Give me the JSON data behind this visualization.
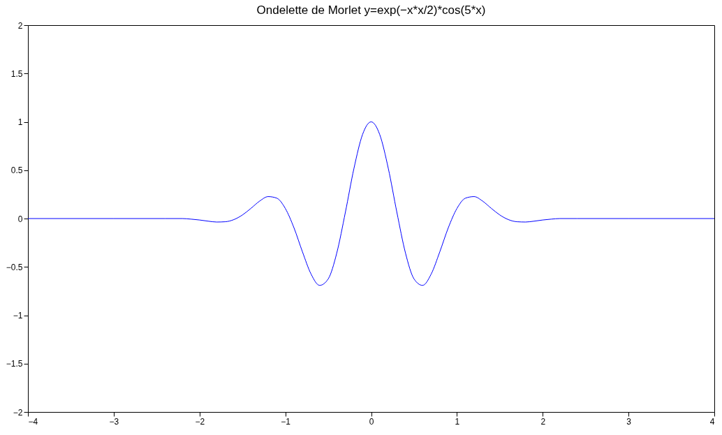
{
  "chart_data": {
    "type": "line",
    "title": "Ondelette de Morlet y=exp(−x*x/2)*cos(5*x)",
    "x": [
      -4,
      -3,
      -2.4,
      -2.2,
      -2.1,
      -2,
      -1.9,
      -1.8,
      -1.7,
      -1.6,
      -1.5,
      -1.4,
      -1.3,
      -1.2,
      -1.1,
      -1,
      -0.9,
      -0.8,
      -0.7,
      -0.6,
      -0.5,
      -0.4,
      -0.3,
      -0.2,
      -0.1,
      0,
      0.1,
      0.2,
      0.3,
      0.4,
      0.5,
      0.6,
      0.7,
      0.8,
      0.9,
      1,
      1.1,
      1.2,
      1.3,
      1.4,
      1.5,
      1.6,
      1.7,
      1.8,
      1.9,
      2,
      2.1,
      2.2,
      2.4,
      3,
      4
    ],
    "series": [
      {
        "color": "#0000ff",
        "values": [
          0,
          0,
          0,
          0,
          -0.006,
          -0.015,
          -0.027,
          -0.036,
          -0.033,
          -0.011,
          0.037,
          0.106,
          0.18,
          0.227,
          0.211,
          0.104,
          -0.094,
          -0.345,
          -0.574,
          -0.691,
          -0.624,
          -0.355,
          0.065,
          0.519,
          0.869,
          1,
          0.869,
          0.519,
          0.065,
          -0.355,
          -0.624,
          -0.691,
          -0.574,
          -0.345,
          -0.094,
          0.104,
          0.211,
          0.227,
          0.18,
          0.106,
          0.037,
          -0.011,
          -0.033,
          -0.036,
          -0.027,
          -0.015,
          -0.006,
          0,
          0,
          0,
          0
        ]
      }
    ],
    "xlim": [
      -4,
      4
    ],
    "xticks": [
      -4,
      -3,
      -2,
      -1,
      0,
      1,
      2,
      3,
      4
    ],
    "ylim": [
      -2,
      2
    ],
    "yticks": [
      -2,
      -1.5,
      -1,
      -0.5,
      0,
      0.5,
      1,
      1.5,
      2
    ],
    "grid": false,
    "marker": "none",
    "line_style": "solid"
  }
}
